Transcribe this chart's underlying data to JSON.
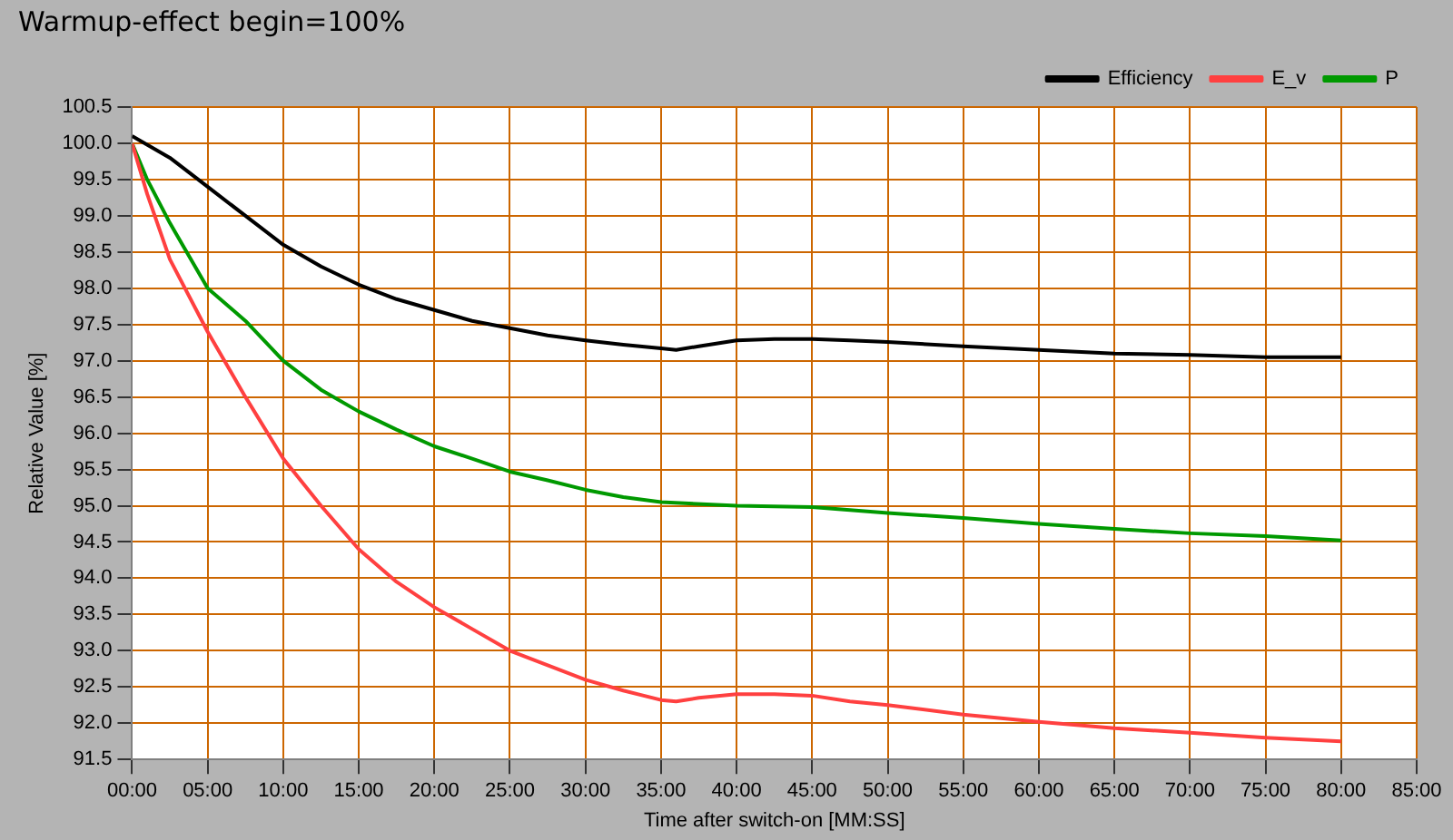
{
  "chart_data": {
    "type": "line",
    "title": "Warmup-effect begin=100%",
    "xlabel": "Time after switch-on [MM:SS]",
    "ylabel": "Relative Value [%]",
    "xlim": [
      0,
      85
    ],
    "ylim": [
      91.5,
      100.5
    ],
    "xticks": [
      {
        "value": 0,
        "label": "00:00"
      },
      {
        "value": 5,
        "label": "05:00"
      },
      {
        "value": 10,
        "label": "10:00"
      },
      {
        "value": 15,
        "label": "15:00"
      },
      {
        "value": 20,
        "label": "20:00"
      },
      {
        "value": 25,
        "label": "25:00"
      },
      {
        "value": 30,
        "label": "30:00"
      },
      {
        "value": 35,
        "label": "35:00"
      },
      {
        "value": 40,
        "label": "40:00"
      },
      {
        "value": 45,
        "label": "45:00"
      },
      {
        "value": 50,
        "label": "50:00"
      },
      {
        "value": 55,
        "label": "55:00"
      },
      {
        "value": 60,
        "label": "60:00"
      },
      {
        "value": 65,
        "label": "65:00"
      },
      {
        "value": 70,
        "label": "70:00"
      },
      {
        "value": 75,
        "label": "75:00"
      },
      {
        "value": 80,
        "label": "80:00"
      },
      {
        "value": 85,
        "label": "85:00"
      }
    ],
    "yticks": [
      {
        "value": 91.5,
        "label": "91.5"
      },
      {
        "value": 92,
        "label": "92.0"
      },
      {
        "value": 92.5,
        "label": "92.5"
      },
      {
        "value": 93,
        "label": "93.0"
      },
      {
        "value": 93.5,
        "label": "93.5"
      },
      {
        "value": 94,
        "label": "94.0"
      },
      {
        "value": 94.5,
        "label": "94.5"
      },
      {
        "value": 95,
        "label": "95.0"
      },
      {
        "value": 95.5,
        "label": "95.5"
      },
      {
        "value": 96,
        "label": "96.0"
      },
      {
        "value": 96.5,
        "label": "96.5"
      },
      {
        "value": 97,
        "label": "97.0"
      },
      {
        "value": 97.5,
        "label": "97.5"
      },
      {
        "value": 98,
        "label": "98.0"
      },
      {
        "value": 98.5,
        "label": "98.5"
      },
      {
        "value": 99,
        "label": "99.0"
      },
      {
        "value": 99.5,
        "label": "99.5"
      },
      {
        "value": 100,
        "label": "100.0"
      },
      {
        "value": 100.5,
        "label": "100.5"
      }
    ],
    "grid": true,
    "legend": "top right",
    "marker": "none",
    "line_style": "solid",
    "series": [
      {
        "name": "Efficiency",
        "color": "#000000",
        "x": [
          0,
          2.5,
          5,
          7.5,
          10,
          12.5,
          15,
          17.5,
          20,
          22.5,
          25,
          27.5,
          30,
          32.5,
          35,
          36,
          37.5,
          40,
          42.5,
          45,
          47.5,
          50,
          55,
          60,
          65,
          70,
          75,
          80
        ],
        "values": [
          100.1,
          99.8,
          99.4,
          99.0,
          98.6,
          98.3,
          98.05,
          97.85,
          97.7,
          97.55,
          97.45,
          97.35,
          97.28,
          97.22,
          97.17,
          97.15,
          97.2,
          97.28,
          97.3,
          97.3,
          97.28,
          97.26,
          97.2,
          97.15,
          97.1,
          97.08,
          97.05,
          97.05
        ]
      },
      {
        "name": "E_v",
        "color": "#ff4040",
        "x": [
          0,
          1,
          2.5,
          5,
          7.5,
          10,
          12.5,
          15,
          17.5,
          20,
          22.5,
          25,
          27.5,
          30,
          32.5,
          35,
          36,
          37.5,
          40,
          42.5,
          45,
          47.5,
          50,
          55,
          60,
          65,
          70,
          75,
          80
        ],
        "values": [
          100.0,
          99.3,
          98.4,
          97.4,
          96.5,
          95.65,
          95.0,
          94.4,
          93.95,
          93.6,
          93.3,
          93.0,
          92.8,
          92.6,
          92.45,
          92.32,
          92.3,
          92.35,
          92.4,
          92.4,
          92.38,
          92.3,
          92.25,
          92.12,
          92.02,
          91.93,
          91.87,
          91.8,
          91.75
        ]
      },
      {
        "name": "P",
        "color": "#009900",
        "x": [
          0,
          1,
          2.5,
          5,
          7.5,
          10,
          12.5,
          15,
          17.5,
          20,
          22.5,
          25,
          27.5,
          30,
          32.5,
          35,
          40,
          45,
          50,
          55,
          60,
          65,
          70,
          75,
          80
        ],
        "values": [
          100.0,
          99.5,
          98.9,
          98.0,
          97.55,
          97.0,
          96.6,
          96.3,
          96.05,
          95.82,
          95.65,
          95.47,
          95.35,
          95.22,
          95.12,
          95.05,
          95.0,
          94.98,
          94.9,
          94.83,
          94.75,
          94.68,
          94.62,
          94.58,
          94.52
        ]
      }
    ]
  }
}
